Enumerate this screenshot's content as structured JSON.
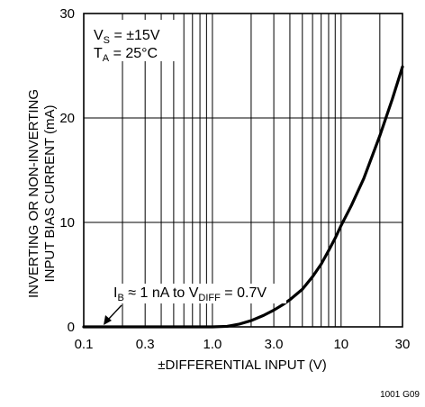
{
  "chart_data": {
    "type": "line",
    "xscale": "log",
    "xlim": [
      0.1,
      30
    ],
    "ylim": [
      0,
      30
    ],
    "grid": true,
    "xlabel": "±DIFFERENTIAL INPUT (V)",
    "ylabel_lines": [
      "INVERTING OR NON-INVERTING",
      "INPUT BIAS CURRENT (mA)"
    ],
    "x_ticks": [
      {
        "value": 0.1,
        "label": "0.1"
      },
      {
        "value": 0.3,
        "label": "0.3"
      },
      {
        "value": 1.0,
        "label": "1.0"
      },
      {
        "value": 3.0,
        "label": "3.0"
      },
      {
        "value": 10,
        "label": "10"
      },
      {
        "value": 30,
        "label": "30"
      }
    ],
    "y_ticks": [
      {
        "value": 0,
        "label": "0"
      },
      {
        "value": 10,
        "label": "10"
      },
      {
        "value": 20,
        "label": "20"
      },
      {
        "value": 30,
        "label": "30"
      }
    ],
    "series": [
      {
        "x": [
          0.1,
          0.3,
          1.0,
          1.3,
          1.6,
          2.0,
          2.5,
          3.0,
          3.5,
          4.0,
          5.0,
          6.0,
          7.0,
          8.0,
          9.0,
          10,
          12,
          15,
          20,
          25,
          30
        ],
        "y": [
          0,
          0,
          0,
          0.05,
          0.25,
          0.6,
          1.1,
          1.6,
          2.1,
          2.6,
          3.6,
          4.8,
          6.0,
          7.3,
          8.5,
          9.7,
          11.6,
          14.2,
          18.3,
          21.8,
          24.9
        ]
      }
    ],
    "annotations": {
      "conditions": {
        "line1": {
          "main": "V",
          "sub": "S",
          "rest": " = ±15V"
        },
        "line2": {
          "main": "T",
          "sub": "A",
          "rest": " = 25°C"
        }
      },
      "ib_note": {
        "p1": "I",
        "p2": "B",
        "p3": " ≈ 1 nA to V",
        "p4": "DIFF",
        "p5": " = 0.7V"
      },
      "figure_code": "1001 G09"
    }
  }
}
